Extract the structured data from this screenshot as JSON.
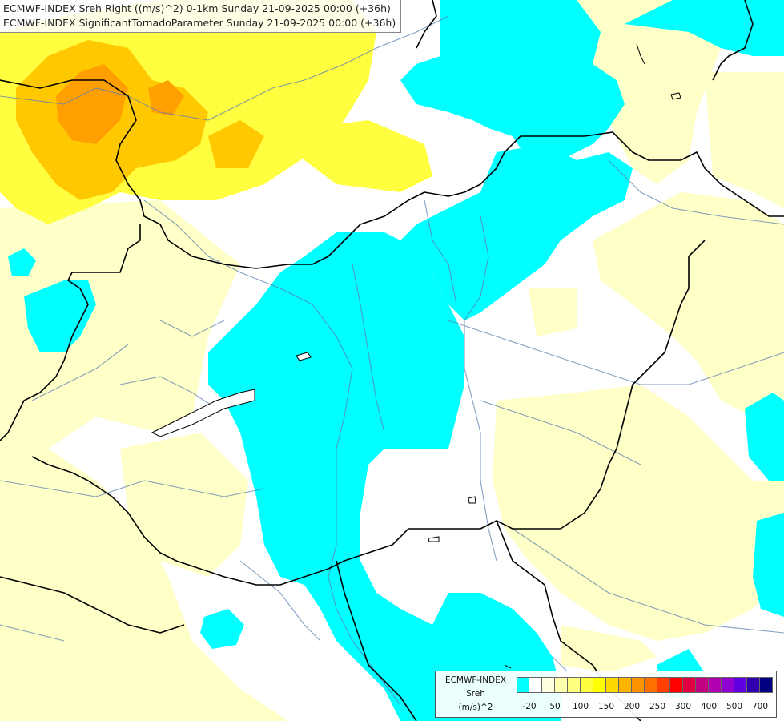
{
  "titles": {
    "line1": "ECMWF-INDEX Sreh Right ((m/s)^2) 0-1km Sunday 21-09-2025 00:00 (+36h)",
    "line2": "ECMWF-INDEX SignificantTornadoParameter Sunday 21-09-2025 00:00 (+36h)"
  },
  "legend": {
    "title": "ECMWF-INDEX",
    "param": "Sreh",
    "unit": "(m/s)^2",
    "colors": [
      "#00ffff",
      "#ffffff",
      "#ffffe0",
      "#ffffb0",
      "#ffff80",
      "#ffff40",
      "#ffff00",
      "#ffd800",
      "#ffb400",
      "#ff9400",
      "#ff7000",
      "#ff4000",
      "#ff0000",
      "#e00040",
      "#c00080",
      "#b000b0",
      "#9000d0",
      "#6000e0",
      "#3000b0",
      "#000080"
    ],
    "ticks": [
      "-20",
      "50",
      "100",
      "150",
      "200",
      "250",
      "300",
      "400",
      "500",
      "700"
    ]
  },
  "colors": {
    "cyan": "#00ffff",
    "pale_yellow": "#ffffc8",
    "yellow": "#ffff00",
    "orange": "#ffc800",
    "dark_orange": "#ffa000",
    "border": "#000000",
    "river": "#5a7fb0"
  }
}
